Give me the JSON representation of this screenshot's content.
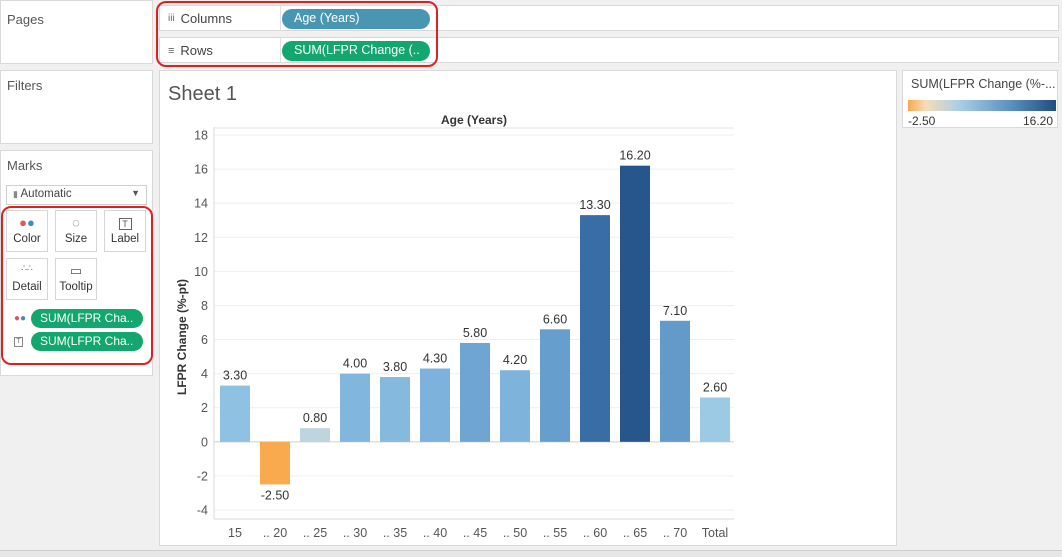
{
  "panes": {
    "pages_title": "Pages",
    "filters_title": "Filters",
    "marks_title": "Marks"
  },
  "shelves": {
    "columns_label": "Columns",
    "columns_pill": "Age (Years)",
    "rows_label": "Rows",
    "rows_pill": "SUM(LFPR Change (.."
  },
  "marks": {
    "type_select": "Automatic",
    "buttons": {
      "color": "Color",
      "size": "Size",
      "label": "Label",
      "detail": "Detail",
      "tooltip": "Tooltip"
    },
    "pills": [
      "SUM(LFPR Cha..",
      "SUM(LFPR Cha.."
    ]
  },
  "sheet": {
    "title": "Sheet 1"
  },
  "legend": {
    "title": "SUM(LFPR Change (%-...",
    "min": "-2.50",
    "max": "16.20"
  },
  "colors": {
    "pill_blue": "#4996b2",
    "pill_green": "#13a66f",
    "highlight_red": "#e02020",
    "negative": "#f9a94e"
  },
  "chart_data": {
    "type": "bar",
    "title": "Age (Years)",
    "ylabel": "LFPR Change (%-pt)",
    "xlabel": "",
    "categories": [
      "15",
      ".. 20",
      ".. 25",
      ".. 30",
      ".. 35",
      ".. 40",
      ".. 45",
      ".. 50",
      ".. 55",
      ".. 60",
      ".. 65",
      ".. 70",
      "Total"
    ],
    "values": [
      3.3,
      -2.5,
      0.8,
      4.0,
      3.8,
      4.3,
      5.8,
      4.2,
      6.6,
      13.3,
      16.2,
      7.1,
      2.6
    ],
    "labels": [
      "3.30",
      "-2.50",
      "0.80",
      "4.00",
      "3.80",
      "4.30",
      "5.80",
      "4.20",
      "6.60",
      "13.30",
      "16.20",
      "7.10",
      "2.60"
    ],
    "yticks": [
      -4,
      -2,
      0,
      2,
      4,
      6,
      8,
      10,
      12,
      14,
      16,
      18
    ],
    "ylim": [
      -4,
      18
    ],
    "grid": true,
    "color_scale": {
      "min": -2.5,
      "max": 16.2
    }
  }
}
